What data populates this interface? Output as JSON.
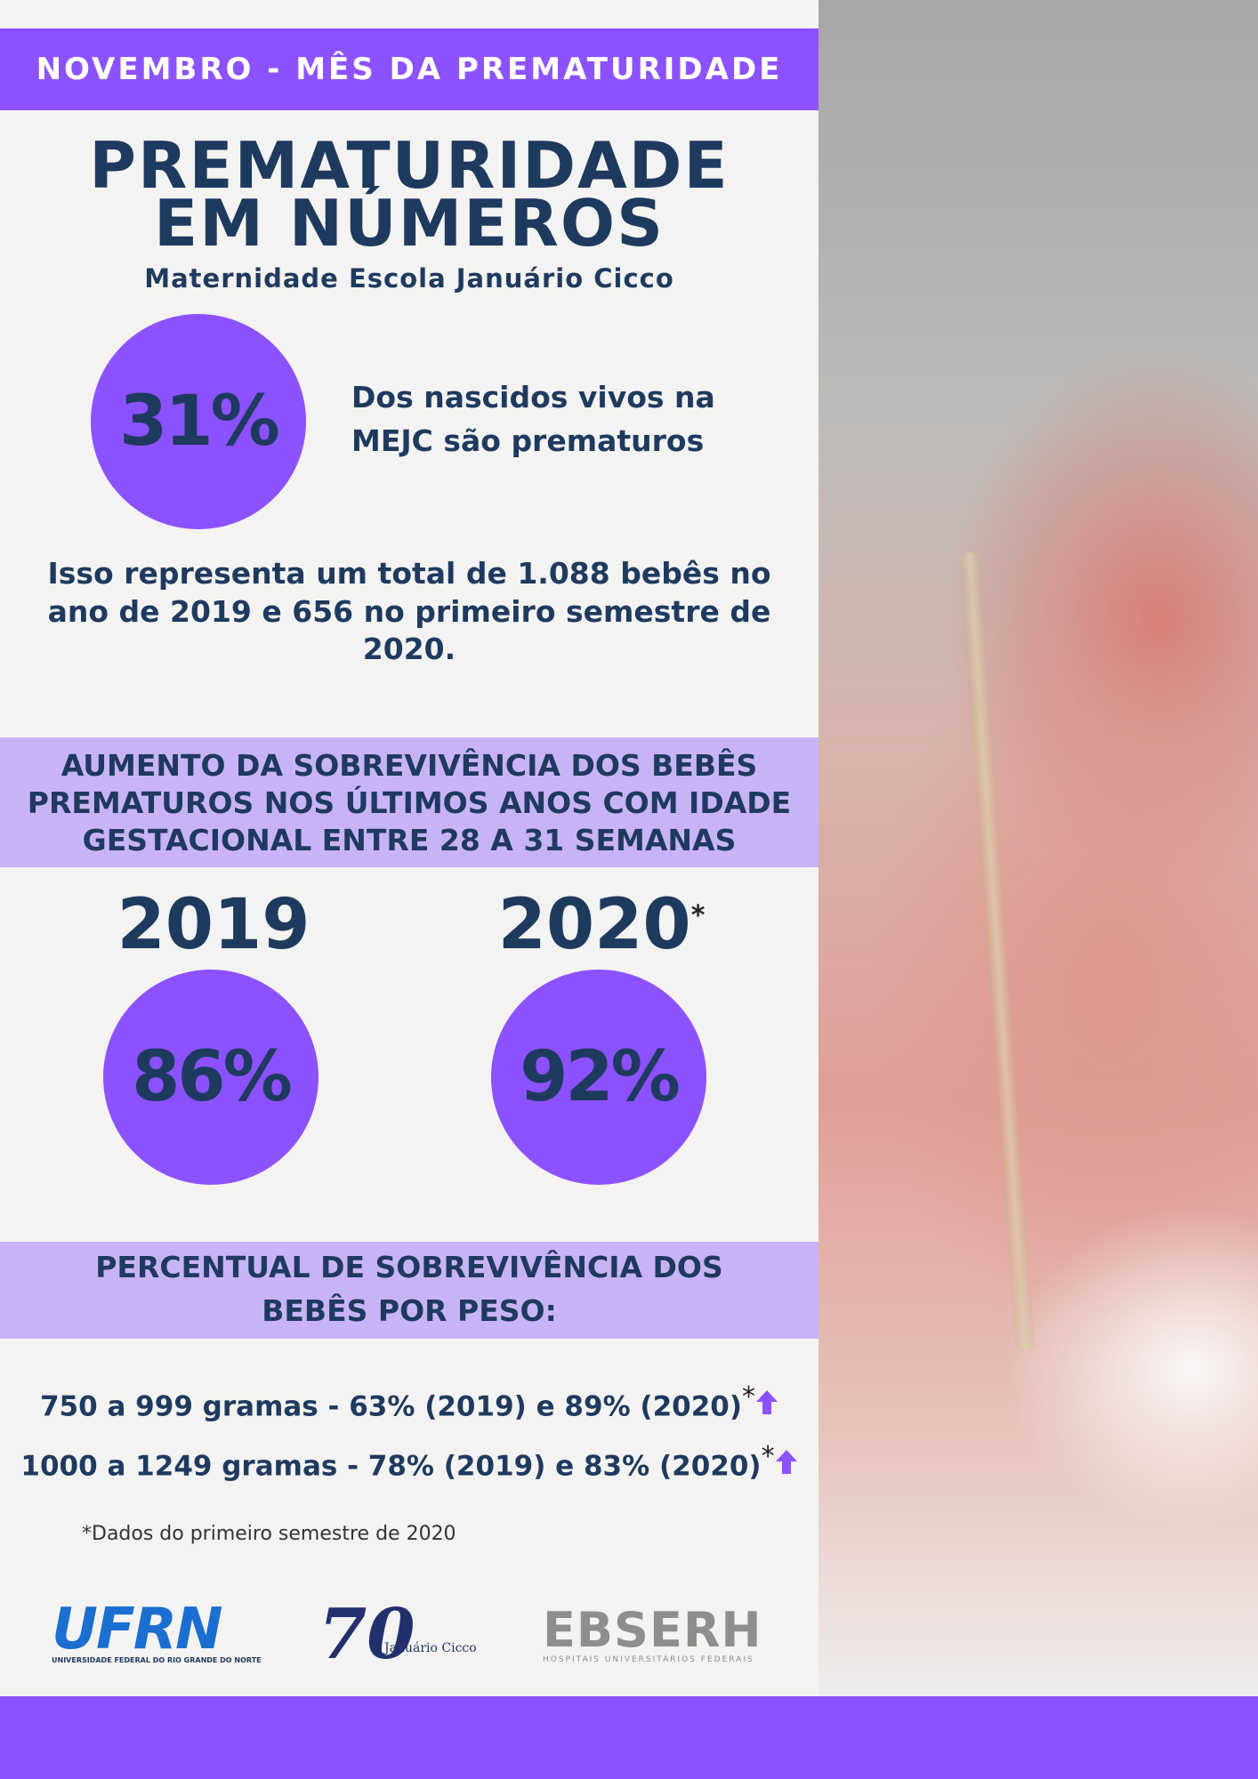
{
  "banner": "NOVEMBRO - MÊS DA PREMATURIDADE",
  "title": [
    "PREMATURIDADE",
    "EM NÚMEROS"
  ],
  "subtitle": "Maternidade Escola Januário Cicco",
  "highlight": {
    "value": "31%",
    "text": [
      "Dos nascidos vivos na",
      "MEJC são prematuros"
    ]
  },
  "summary": [
    "Isso representa um total de 1.088 bebês no",
    "ano de 2019 e 656 no primeiro semestre de",
    "2020."
  ],
  "section1": {
    "heading": [
      "AUMENTO DA SOBREVIVÊNCIA DOS BEBÊS",
      "PREMATUROS NOS ÚLTIMOS ANOS COM IDADE",
      "GESTACIONAL ENTRE 28 A 31 SEMANAS"
    ],
    "years": [
      {
        "year": "2019",
        "value": "86%"
      },
      {
        "year": "2020",
        "mark": "*",
        "value": "92%"
      }
    ]
  },
  "section2": {
    "heading": [
      "PERCENTUAL DE SOBREVIVÊNCIA DOS",
      "BEBÊS POR  PESO:"
    ],
    "items": [
      {
        "text": "750 a 999 gramas - 63% (2019) e 89% (2020)",
        "mark": "*"
      },
      {
        "text": "1000 a 1249  gramas - 78% (2019) e 83% (2020)",
        "mark": "*"
      }
    ]
  },
  "footnote": "*Dados do primeiro semestre de 2020",
  "logos": {
    "ufrn": "UFRN",
    "ufrn_caption": "UNIVERSIDADE FEDERAL DO RIO GRANDE DO NORTE",
    "mejc": "70",
    "mejc_caption": "Januário Cicco",
    "ebserh": "EBSERH",
    "ebserh_caption": "HOSPITAIS UNIVERSITÁRIOS FEDERAIS"
  }
}
